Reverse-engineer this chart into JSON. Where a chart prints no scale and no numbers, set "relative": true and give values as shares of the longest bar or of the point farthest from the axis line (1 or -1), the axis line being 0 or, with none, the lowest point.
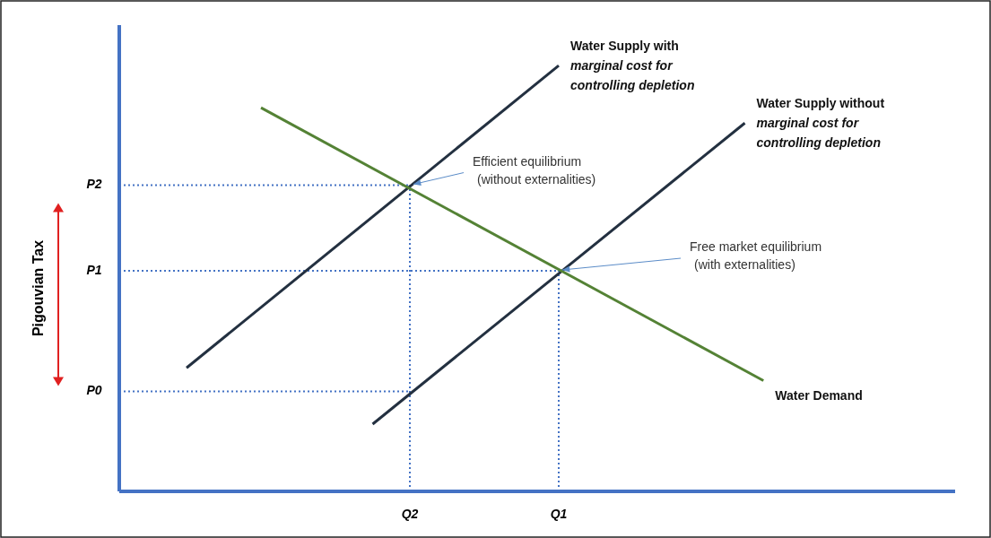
{
  "chart_data": {
    "type": "line",
    "relative": true,
    "categories": [
      null,
      null,
      null,
      null,
      null,
      null,
      null,
      null,
      null,
      null,
      null,
      null,
      null,
      null,
      "Q2",
      null,
      null,
      null,
      null,
      null,
      null,
      null,
      "Q1",
      null,
      null,
      null,
      null,
      null,
      null,
      null,
      null,
      null,
      null,
      null
    ],
    "series": [
      {
        "name": "Water Supply with marginal cost for controlling depletion",
        "color": "#233040",
        "values": [
          null,
          null,
          0.29,
          null,
          null,
          null,
          null,
          null,
          null,
          null,
          null,
          null,
          null,
          null,
          null,
          null,
          null,
          null,
          null,
          null,
          null,
          null,
          1,
          null,
          null,
          null,
          null,
          null,
          null,
          null,
          null,
          null,
          null,
          null
        ]
      },
      {
        "name": "Water Supply without marginal cost for controlling depletion",
        "color": "#233040",
        "values": [
          null,
          null,
          null,
          null,
          null,
          null,
          null,
          null,
          null,
          null,
          null,
          null,
          0.158,
          null,
          null,
          null,
          null,
          null,
          null,
          null,
          null,
          null,
          null,
          null,
          null,
          null,
          null,
          null,
          null,
          null,
          null,
          null,
          0.865,
          null
        ]
      },
      {
        "name": "Water Demand",
        "color": "#548235",
        "values": [
          null,
          null,
          null,
          null,
          null,
          null,
          0.901,
          null,
          null,
          null,
          null,
          null,
          null,
          null,
          null,
          null,
          null,
          null,
          null,
          null,
          null,
          null,
          null,
          null,
          null,
          null,
          null,
          null,
          null,
          null,
          null,
          null,
          null,
          0.26
        ]
      }
    ],
    "ref_lines": [
      {
        "axis": "y",
        "value": 0.719,
        "label": "P2",
        "color": "#4472c4",
        "line_style": "dotted"
      },
      {
        "axis": "y",
        "value": 0.518,
        "label": "P1",
        "color": "#4472c4",
        "line_style": "dotted"
      },
      {
        "axis": "y",
        "value": 0.235,
        "label": "P0",
        "color": "#4472c4",
        "line_style": "dotted"
      },
      {
        "axis": "x",
        "value": "Q2",
        "color": "#4472c4",
        "line_style": "dotted"
      },
      {
        "axis": "x",
        "value": "Q1",
        "color": "#4472c4",
        "line_style": "dotted"
      }
    ],
    "annotations": [
      "Pigouvian Tax",
      {
        "text": "Efficient equilibrium (without externalities)",
        "x": "Q2",
        "y": 0.719
      },
      {
        "text": "Free market equilibrium (with externalities)",
        "x": "Q1",
        "y": 0.518
      }
    ]
  }
}
